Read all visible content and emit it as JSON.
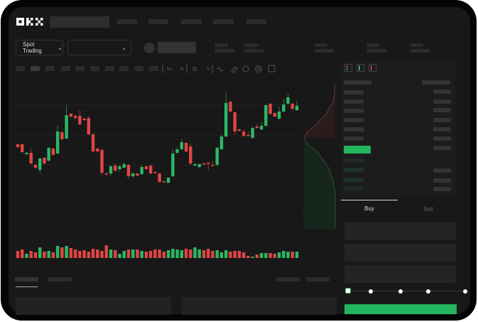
{
  "logo": {
    "text": "OKX"
  },
  "market_selector": {
    "label": "Spot Trading",
    "icon": "chevron-down-icon"
  },
  "pair_selector": {
    "value": "",
    "icon": "chevron-down-icon"
  },
  "order_form": {
    "tabs": [
      "Buy",
      "Sell"
    ],
    "active_tab": "Buy",
    "slider_percent": 0
  },
  "colors": {
    "up": "#2bb866",
    "down": "#e04545",
    "background": "#181818",
    "accent": "#22b55e"
  },
  "chart_data": {
    "type": "candlestick",
    "candles": [
      [
        97,
        98,
        92,
        93
      ],
      [
        97,
        98,
        85,
        86
      ],
      [
        83,
        86,
        82,
        85
      ],
      [
        85,
        92,
        69,
        70
      ],
      [
        68,
        70,
        62,
        64
      ],
      [
        61,
        78,
        56,
        77
      ],
      [
        78,
        79,
        69,
        70
      ],
      [
        74,
        93,
        73,
        92
      ],
      [
        91,
        92,
        81,
        82
      ],
      [
        84,
        124,
        84,
        115
      ],
      [
        114,
        116,
        103,
        104
      ],
      [
        105,
        152,
        105,
        138
      ],
      [
        140,
        141,
        135,
        136
      ],
      [
        137,
        139,
        132,
        134
      ],
      [
        137,
        145,
        124,
        125
      ],
      [
        133,
        134,
        130,
        131
      ],
      [
        134,
        137,
        110,
        111
      ],
      [
        111,
        113,
        86,
        87
      ],
      [
        91,
        92,
        85,
        87
      ],
      [
        89,
        91,
        53,
        57
      ],
      [
        56,
        58,
        53,
        55
      ],
      [
        56,
        68,
        53,
        66
      ],
      [
        67,
        70,
        58,
        60
      ],
      [
        62,
        68,
        59,
        66
      ],
      [
        64,
        72,
        64,
        69
      ],
      [
        68,
        69,
        48,
        52
      ],
      [
        52,
        57,
        50,
        56
      ],
      [
        56,
        57,
        51,
        53
      ],
      [
        55,
        68,
        54,
        65
      ],
      [
        66,
        67,
        61,
        62
      ],
      [
        67,
        69,
        54,
        56
      ],
      [
        58,
        59,
        56,
        57
      ],
      [
        56,
        57,
        43,
        44
      ],
      [
        45,
        46,
        43,
        44
      ],
      [
        43,
        51,
        42,
        50
      ],
      [
        52,
        90,
        51,
        84
      ],
      [
        85,
        93,
        84,
        90
      ],
      [
        90,
        105,
        89,
        100
      ],
      [
        99,
        100,
        86,
        87
      ],
      [
        94,
        98,
        68,
        70
      ],
      [
        67,
        71,
        66,
        69
      ],
      [
        65,
        70,
        64,
        69
      ],
      [
        70,
        71,
        68,
        69
      ],
      [
        71,
        72,
        60,
        70
      ],
      [
        68,
        74,
        66,
        67
      ],
      [
        68,
        94,
        67,
        92
      ],
      [
        90,
        111,
        89,
        108
      ],
      [
        108,
        171,
        107,
        155
      ],
      [
        157,
        158,
        141,
        143
      ],
      [
        142,
        143,
        111,
        115
      ],
      [
        118,
        119,
        115,
        116
      ],
      [
        115,
        117,
        107,
        109
      ],
      [
        110,
        114,
        108,
        109
      ],
      [
        106,
        122,
        105,
        120
      ],
      [
        122,
        126,
        119,
        120
      ],
      [
        118,
        128,
        117,
        123
      ],
      [
        123,
        153,
        122,
        152
      ],
      [
        154,
        155,
        138,
        140
      ],
      [
        141,
        142,
        135,
        136
      ],
      [
        133,
        150,
        132,
        143
      ],
      [
        143,
        161,
        142,
        153
      ],
      [
        154,
        168,
        153,
        163
      ],
      [
        154,
        156,
        144,
        147
      ],
      [
        145,
        158,
        144,
        151
      ]
    ],
    "volume": [
      10,
      12,
      6,
      10,
      8,
      15,
      9,
      10,
      8,
      17,
      15,
      17,
      14,
      12,
      10,
      11,
      9,
      13,
      12,
      10,
      18,
      12,
      11,
      6,
      10,
      12,
      12,
      12,
      10,
      9,
      10,
      12,
      12,
      9,
      11,
      13,
      12,
      11,
      13,
      12,
      15,
      12,
      11,
      13,
      10,
      11,
      8,
      11,
      9,
      10,
      10,
      8,
      3,
      2,
      5,
      7,
      7,
      7,
      6,
      8,
      10,
      9,
      9,
      9
    ]
  }
}
